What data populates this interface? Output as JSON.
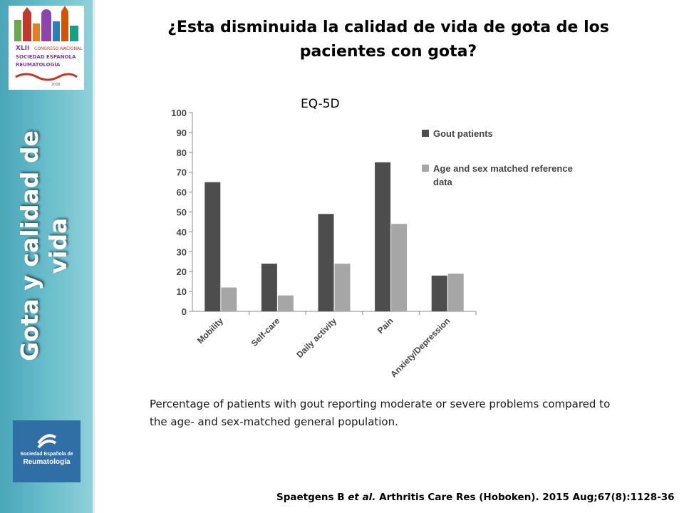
{
  "slide": {
    "title": "¿Esta disminuida la calidad de vida de gota de los pacientes con gota?",
    "sidebar_title": "Gota  y calidad de vida",
    "caption": "Percentage of patients with gout reporting moderate or severe problems compared to the age- and sex-matched general population.",
    "citation": {
      "authors": "Spaetgens B ",
      "etal": "et al.",
      "rest": " Arthritis Care Res (Hoboken). 2015 Aug;67(8):1128-36"
    },
    "logo": {
      "line1": "Sociedad Española de",
      "line2": "Reumatología"
    }
  },
  "colors": {
    "sidebar": "#5fb6c6",
    "gout": "#4d4d4d",
    "reference": "#a6a6a6",
    "ser_blue": "#2f6fa6"
  },
  "chart_data": {
    "type": "bar",
    "title": "EQ-5D",
    "categories": [
      "Mobility",
      "Self-care",
      "Daily activity",
      "Pain",
      "Anxiety/Depression"
    ],
    "series": [
      {
        "name": "Gout patients",
        "values": [
          65,
          24,
          49,
          75,
          18
        ]
      },
      {
        "name": "Age and sex matched reference data",
        "values": [
          12,
          8,
          24,
          44,
          19
        ]
      }
    ],
    "ylim": [
      0,
      100
    ],
    "yticks": [
      0,
      10,
      20,
      30,
      40,
      50,
      60,
      70,
      80,
      90,
      100
    ],
    "grid": false,
    "legend": "right"
  }
}
